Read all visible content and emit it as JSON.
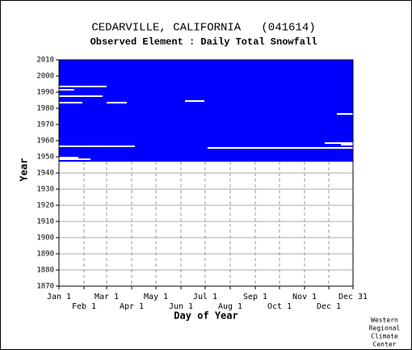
{
  "chart_data": {
    "type": "coverage",
    "title": "CEDARVILLE, CALIFORNIA   (041614)",
    "subtitle": "Observed Element : Daily Total Snowfall",
    "x_label": "Day of Year",
    "y_label": "Year",
    "xlim": [
      1,
      365
    ],
    "xticks": [
      {
        "value": 1,
        "label": "Jan 1"
      },
      {
        "value": 32,
        "label": "Feb 1"
      },
      {
        "value": 60,
        "label": "Mar 1"
      },
      {
        "value": 91,
        "label": "Apr 1"
      },
      {
        "value": 121,
        "label": "May 1"
      },
      {
        "value": 152,
        "label": "Jun 1"
      },
      {
        "value": 182,
        "label": "Jul 1"
      },
      {
        "value": 213,
        "label": "Aug 1"
      },
      {
        "value": 244,
        "label": "Sep 1"
      },
      {
        "value": 274,
        "label": "Oct 1"
      },
      {
        "value": 305,
        "label": "Nov 1"
      },
      {
        "value": 335,
        "label": "Dec 1"
      },
      {
        "value": 365,
        "label": "Dec 31"
      }
    ],
    "ylim": [
      1870,
      2010
    ],
    "yticks": [
      1870,
      1880,
      1890,
      1900,
      1910,
      1920,
      1930,
      1940,
      1950,
      1960,
      1970,
      1980,
      1990,
      2000,
      2010
    ],
    "color": "#0000ff",
    "filled": {
      "years": [
        1947,
        2010
      ],
      "days": [
        1,
        365
      ]
    },
    "gaps": [
      {
        "year": 1948,
        "days": [
          1,
          40
        ]
      },
      {
        "year": 1949,
        "days": [
          1,
          25
        ]
      },
      {
        "year": 1956,
        "days": [
          1,
          95
        ]
      },
      {
        "year": 1955,
        "days": [
          185,
          365
        ]
      },
      {
        "year": 1957,
        "days": [
          350,
          365
        ]
      },
      {
        "year": 1984,
        "days": [
          157,
          181
        ]
      },
      {
        "year": 1983,
        "days": [
          1,
          30
        ]
      },
      {
        "year": 1983,
        "days": [
          60,
          85
        ]
      },
      {
        "year": 1987,
        "days": [
          1,
          55
        ]
      },
      {
        "year": 1991,
        "days": [
          1,
          20
        ]
      },
      {
        "year": 1993,
        "days": [
          1,
          60
        ]
      },
      {
        "year": 1976,
        "days": [
          345,
          365
        ]
      },
      {
        "year": 1958,
        "days": [
          330,
          365
        ]
      }
    ],
    "footer": [
      "Western",
      "Regional",
      "Climate",
      "Center"
    ]
  }
}
